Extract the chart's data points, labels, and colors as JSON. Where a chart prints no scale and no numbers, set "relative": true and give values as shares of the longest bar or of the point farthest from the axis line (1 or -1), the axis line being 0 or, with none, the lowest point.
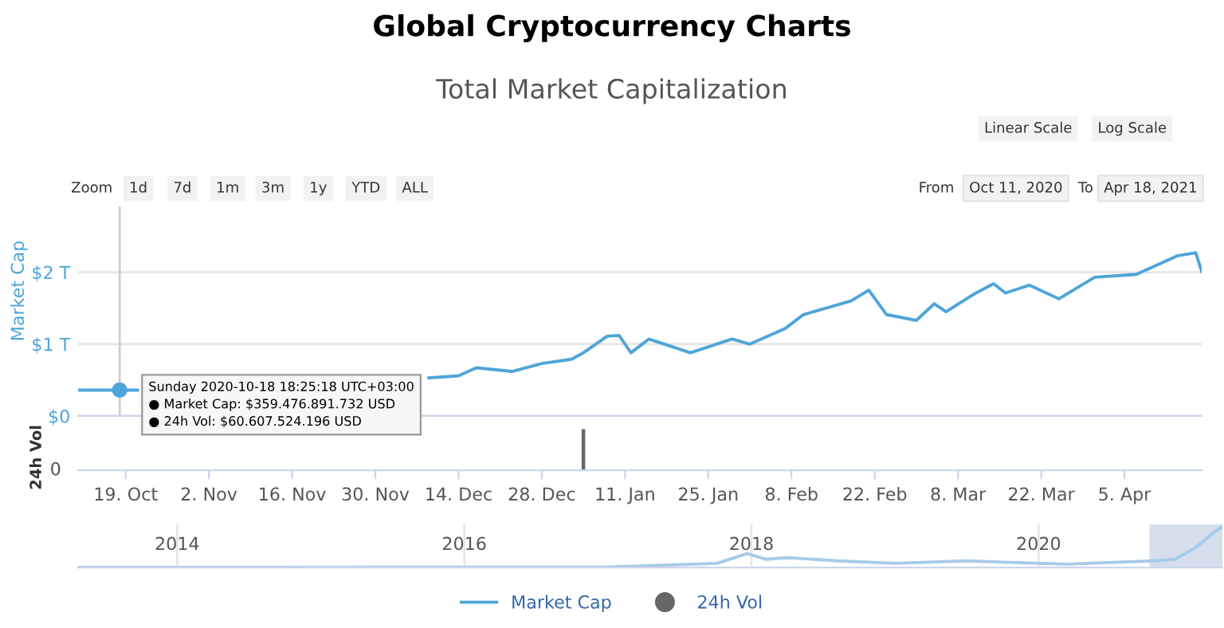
{
  "chart_data": [
    {
      "type": "line",
      "title": "Global Cryptocurrency Charts",
      "subtitle": "Total Market Capitalization",
      "ylabel": "Market Cap",
      "x": [
        "2020-10-11",
        "2020-10-18",
        "2020-10-21",
        "2020-10-22",
        "2020-12-09",
        "2020-12-14",
        "2020-12-17",
        "2020-12-23",
        "2020-12-28",
        "2021-01-02",
        "2021-01-04",
        "2021-01-08",
        "2021-01-10",
        "2021-01-12",
        "2021-01-15",
        "2021-01-22",
        "2021-01-29",
        "2021-02-01",
        "2021-02-07",
        "2021-02-10",
        "2021-02-13",
        "2021-02-18",
        "2021-02-21",
        "2021-02-24",
        "2021-03-01",
        "2021-03-04",
        "2021-03-06",
        "2021-03-11",
        "2021-03-14",
        "2021-03-16",
        "2021-03-20",
        "2021-03-25",
        "2021-03-31",
        "2021-04-07",
        "2021-04-14",
        "2021-04-17",
        "2021-04-18"
      ],
      "series": [
        {
          "name": "Market Cap",
          "color": "#4ea5d9",
          "values": [
            0.36,
            0.36,
            0.36,
            null,
            0.53,
            0.56,
            0.67,
            0.62,
            0.73,
            0.79,
            0.88,
            1.11,
            1.12,
            0.88,
            1.07,
            0.88,
            1.07,
            1.0,
            1.22,
            1.41,
            1.48,
            1.6,
            1.75,
            1.41,
            1.33,
            1.56,
            1.45,
            1.71,
            1.84,
            1.71,
            1.82,
            1.63,
            1.93,
            1.97,
            2.23,
            2.27,
            2.01
          ]
        }
      ],
      "xlim": [
        "2020-10-11",
        "2021-04-18"
      ],
      "ylim": [
        0,
        2.9
      ],
      "yticks": [
        {
          "value": 0,
          "label": "$0"
        },
        {
          "value": 1,
          "label": "$1 T"
        },
        {
          "value": 2,
          "label": "$2 T"
        }
      ],
      "tick_labels": "y",
      "grid": "y",
      "marker": "none",
      "line_style": "solid",
      "legend": "bottom",
      "ref_lines": [
        {
          "axis": "x",
          "value": "2020-10-18",
          "color": "#cccccc"
        }
      ],
      "annotations": [
        {
          "text": "Sunday 2020-10-18 18:25:18 UTC+03:00\n● Market Cap: $359.476.891.732 USD\n● 24h Vol: $60.607.524.196 USD",
          "x": "2020-10-18",
          "y": 0.36
        },
        "Linear Scale",
        "Log Scale",
        "Zoom",
        "1d",
        "7d",
        "1m",
        "3m",
        "1y",
        "YTD",
        "ALL",
        "From",
        "Oct 11, 2020",
        "To",
        "Apr 18, 2021"
      ]
    },
    {
      "type": "bar",
      "ylabel": "24h Vol",
      "relative": true,
      "x": [
        "2021-01-04"
      ],
      "series": [
        {
          "name": "24h Vol",
          "color": "#666666",
          "values": [
            1
          ]
        }
      ],
      "xlim": [
        "2020-10-11",
        "2021-04-18"
      ],
      "xticks": [
        {
          "value": "2020-10-19",
          "label": "19. Oct"
        },
        {
          "value": "2020-11-02",
          "label": "2. Nov"
        },
        {
          "value": "2020-11-16",
          "label": "16. Nov"
        },
        {
          "value": "2020-11-30",
          "label": "30. Nov"
        },
        {
          "value": "2020-12-14",
          "label": "14. Dec"
        },
        {
          "value": "2020-12-28",
          "label": "28. Dec"
        },
        {
          "value": "2021-01-11",
          "label": "11. Jan"
        },
        {
          "value": "2021-01-25",
          "label": "25. Jan"
        },
        {
          "value": "2021-02-08",
          "label": "8. Feb"
        },
        {
          "value": "2021-02-22",
          "label": "22. Feb"
        },
        {
          "value": "2021-03-08",
          "label": "8. Mar"
        },
        {
          "value": "2021-03-22",
          "label": "22. Mar"
        },
        {
          "value": "2021-04-05",
          "label": "5. Apr"
        }
      ],
      "tick_labels": "x",
      "annotations": [
        "0"
      ]
    },
    {
      "type": "line",
      "relative": true,
      "x": [
        2013.31,
        2017.0,
        2017.76,
        2017.97,
        2018.1,
        2018.25,
        2018.6,
        2019.0,
        2019.5,
        2020.0,
        2020.2,
        2020.8,
        2020.95,
        2021.1,
        2021.2,
        2021.28
      ],
      "series": [
        {
          "color": "#a6cbe6",
          "values": [
            0.0,
            0.01,
            0.1,
            0.34,
            0.2,
            0.24,
            0.16,
            0.1,
            0.16,
            0.1,
            0.08,
            0.16,
            0.2,
            0.5,
            0.8,
            1.0
          ]
        }
      ],
      "xlim": [
        2013.31,
        2021.28
      ],
      "xticks": [
        2014,
        2016,
        2018,
        2020
      ],
      "tick_labels": "x",
      "grid": "x",
      "bands": [
        {
          "axis": "x",
          "from": 2020.78,
          "to": 2021.28,
          "color": "#ccd6eb"
        }
      ]
    }
  ]
}
